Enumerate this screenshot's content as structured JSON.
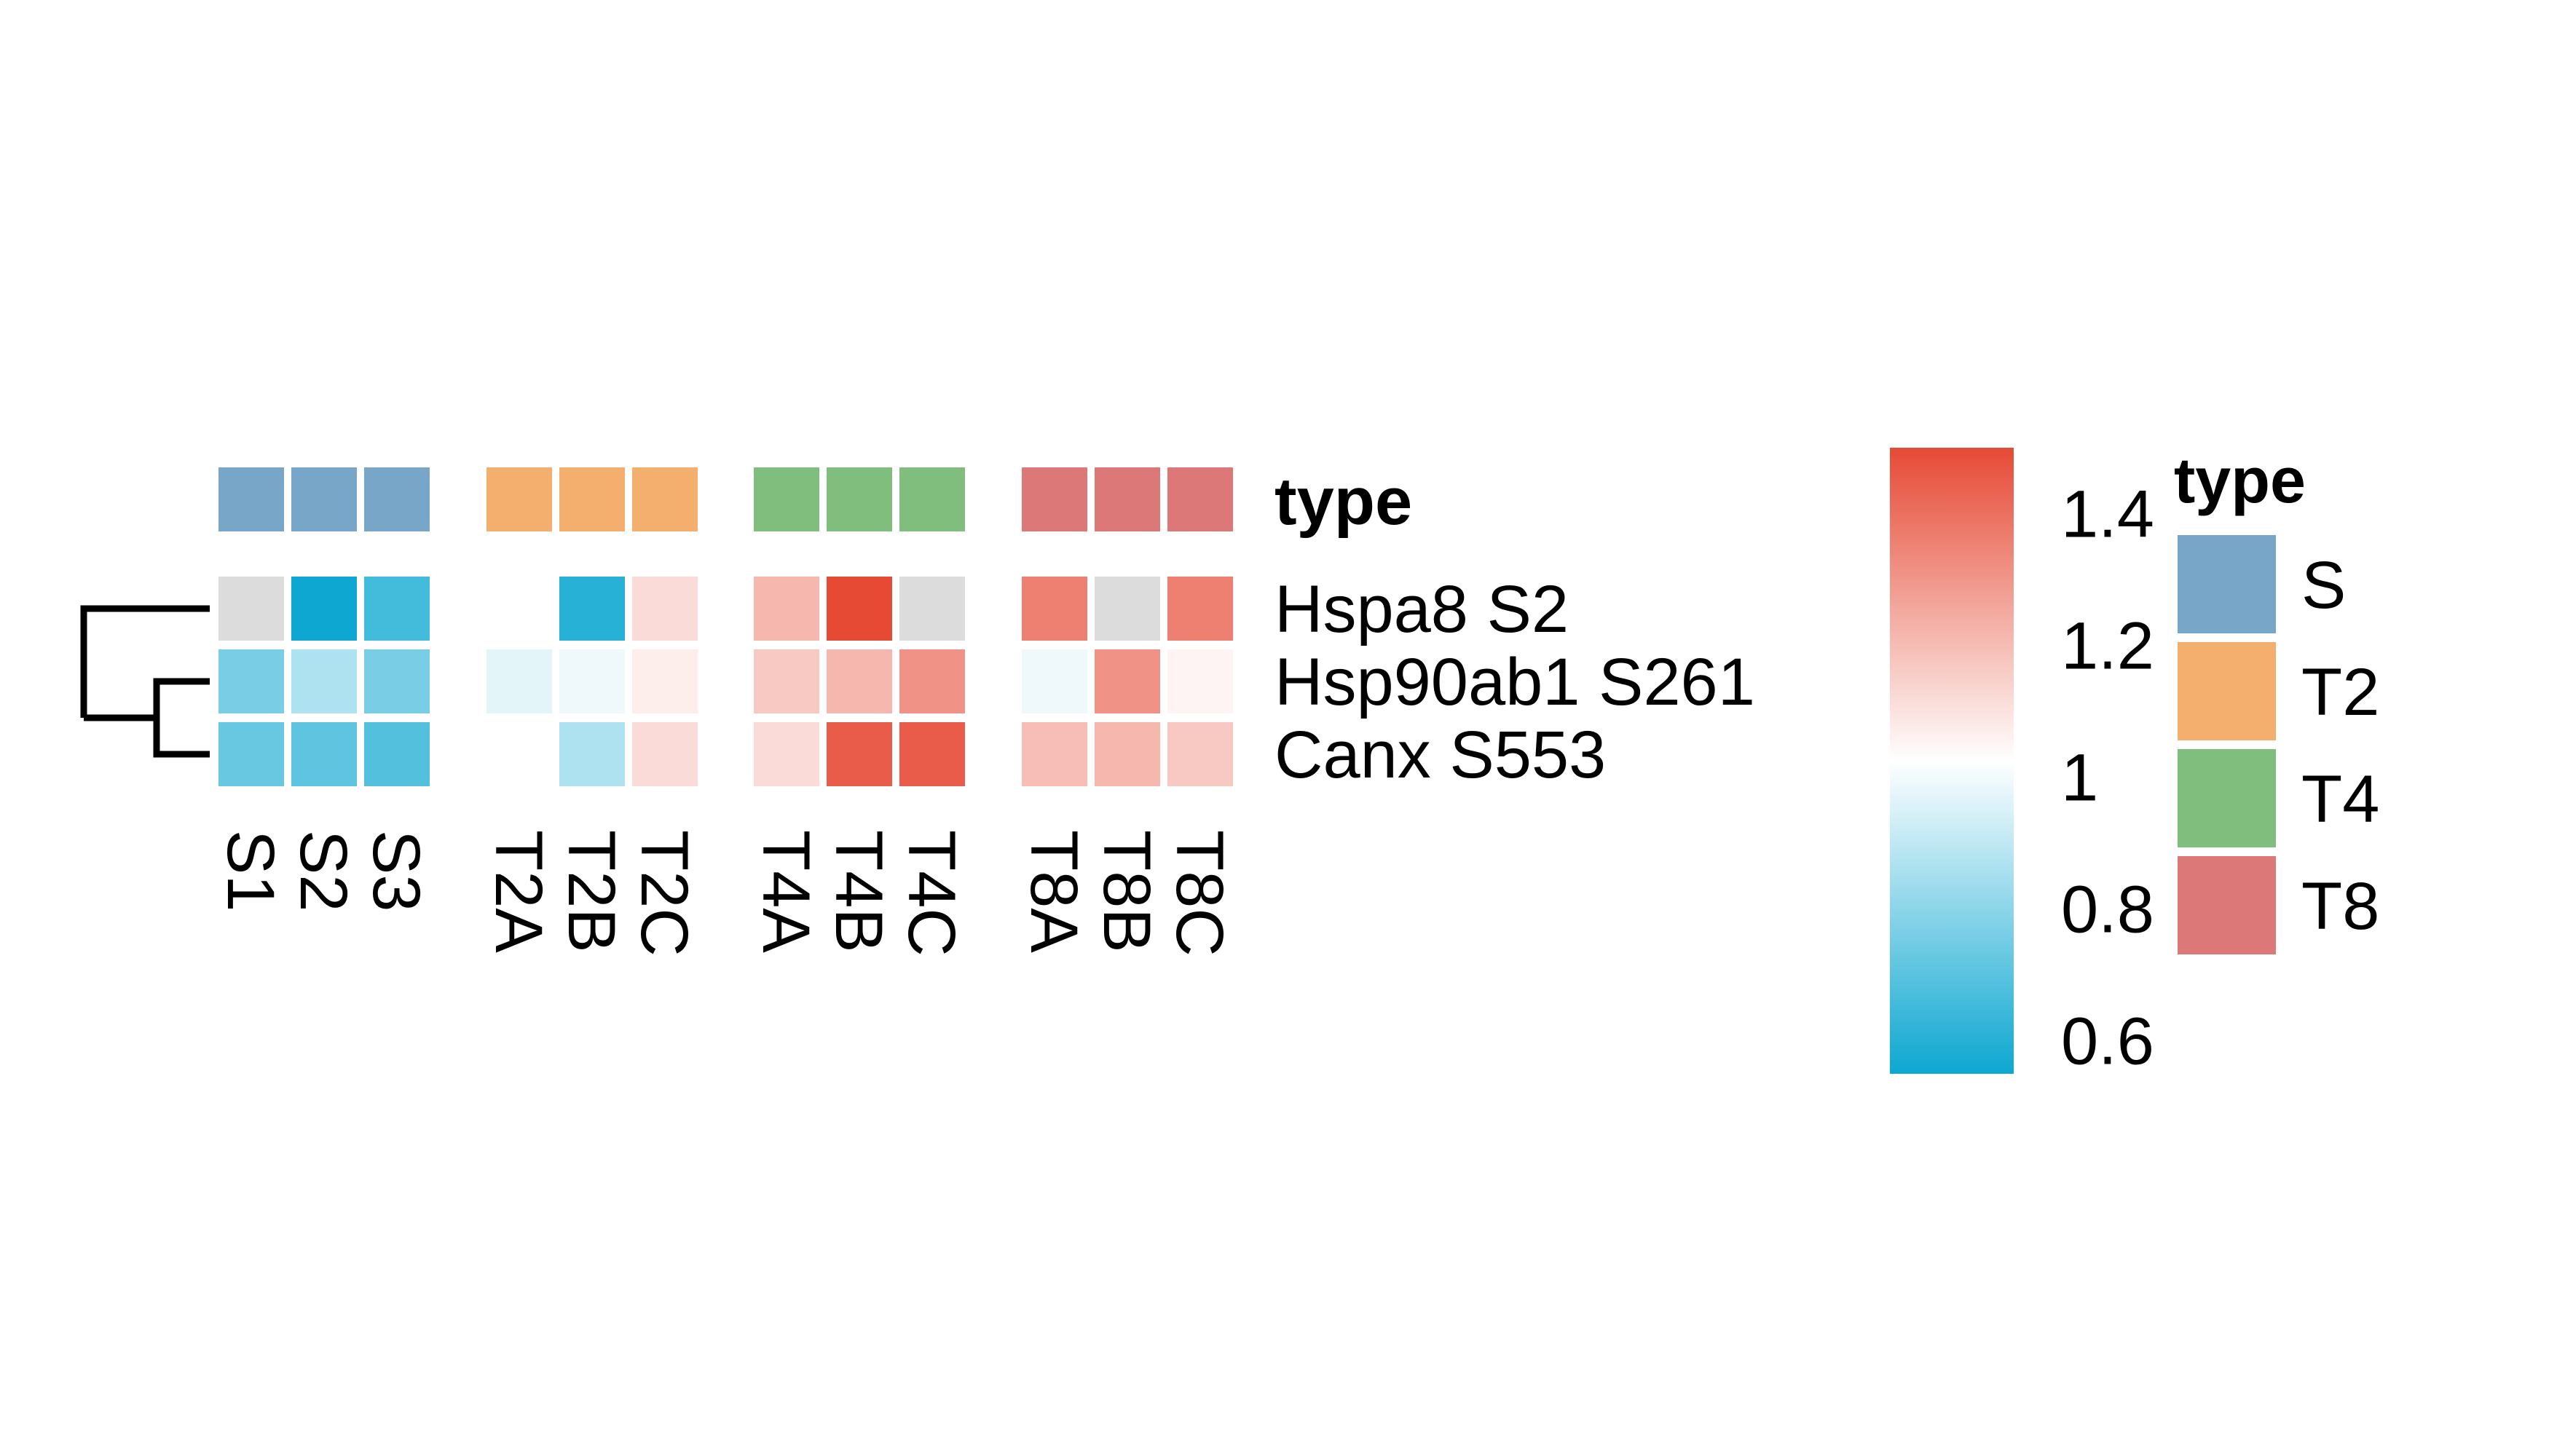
{
  "chart_data": {
    "type": "heatmap",
    "title": "",
    "annotation_label": "type",
    "rows": [
      "Hspa8 S2",
      "Hsp90ab1 S261",
      "Canx S553"
    ],
    "columns": [
      "S1",
      "S2",
      "S3",
      "T2A",
      "T2B",
      "T2C",
      "T4A",
      "T4B",
      "T4C",
      "T8A",
      "T8B",
      "T8C"
    ],
    "column_groups": [
      "S",
      "S",
      "S",
      "T2",
      "T2",
      "T2",
      "T4",
      "T4",
      "T4",
      "T8",
      "T8",
      "T8"
    ],
    "values": [
      [
        null,
        0.55,
        0.65,
        1.0,
        0.6,
        1.1,
        1.2,
        1.5,
        null,
        1.35,
        null,
        1.35
      ],
      [
        0.75,
        0.85,
        0.75,
        0.95,
        0.97,
        1.05,
        1.15,
        1.2,
        1.3,
        0.97,
        1.3,
        1.03
      ],
      [
        0.72,
        0.7,
        0.68,
        1.0,
        0.85,
        1.1,
        1.1,
        1.45,
        1.45,
        1.18,
        1.2,
        1.15
      ]
    ],
    "na_color": "#DCDCDC",
    "color_scale": {
      "min": 0.55,
      "mid": 1.0,
      "max": 1.5,
      "low_color": "#0DA7D1",
      "mid_color": "#FFFFFF",
      "high_color": "#E64A35",
      "ticks": [
        0.6,
        0.8,
        1,
        1.2,
        1.4
      ]
    },
    "legend": {
      "title": "type",
      "entries": [
        {
          "label": "S",
          "color": "#77A6C9"
        },
        {
          "label": "T2",
          "color": "#F4AE6D"
        },
        {
          "label": "T4",
          "color": "#7FBE7D"
        },
        {
          "label": "T8",
          "color": "#DC7878"
        }
      ]
    },
    "row_dendrogram": {
      "merges": [
        [
          2,
          3
        ],
        [
          1,
          "m1"
        ]
      ]
    }
  }
}
